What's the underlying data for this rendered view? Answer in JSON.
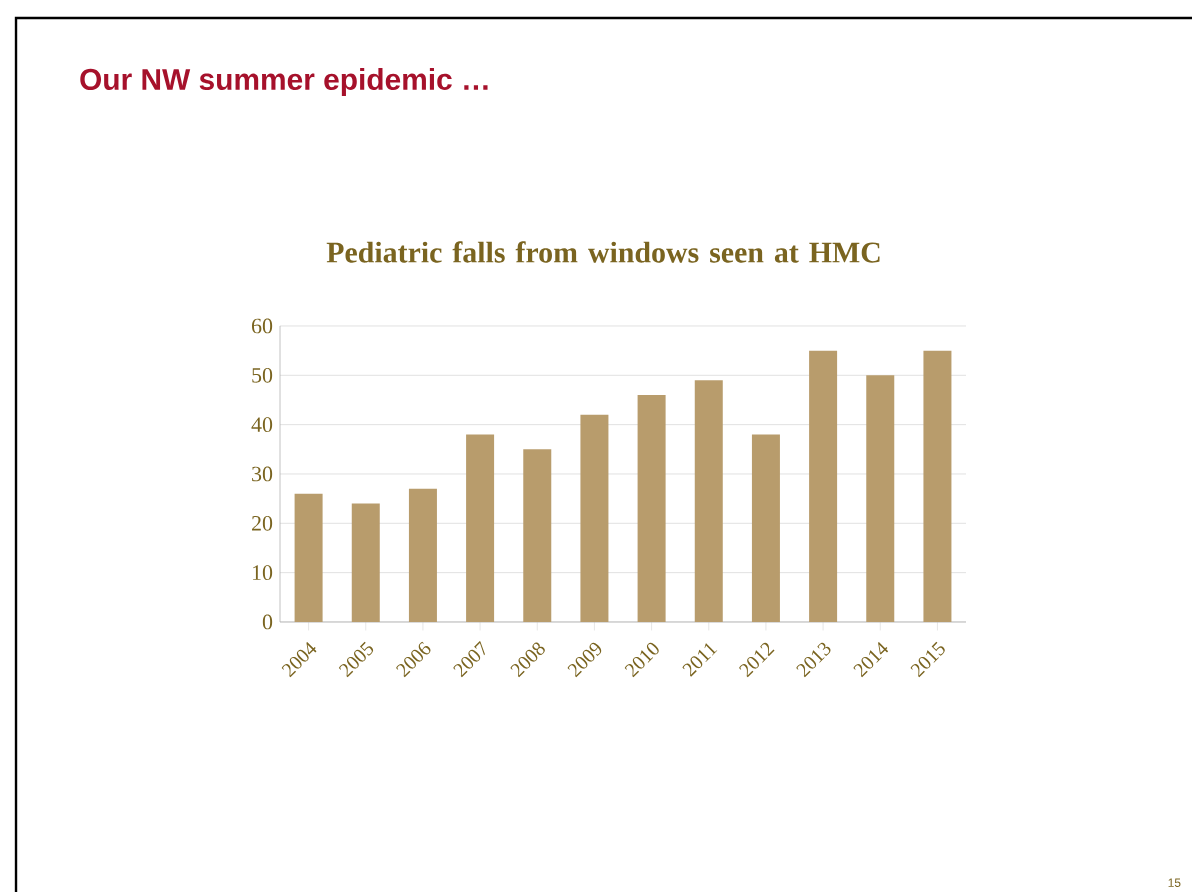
{
  "chart_data": {
    "type": "bar",
    "title": "Our NW summer epidemic …",
    "subtitle": "Pediatric falls from windows seen at HMC",
    "categories": [
      "2004",
      "2005",
      "2006",
      "2007",
      "2008",
      "2009",
      "2010",
      "2011",
      "2012",
      "2013",
      "2014",
      "2015"
    ],
    "values": [
      26,
      24,
      27,
      38,
      35,
      42,
      46,
      49,
      38,
      55,
      50,
      55
    ],
    "color": "#b89c6c",
    "ylim": [
      0,
      60
    ],
    "yticks": [
      0,
      10,
      20,
      30,
      40,
      50,
      60
    ],
    "grid": "y",
    "annotations": [
      "15"
    ]
  }
}
